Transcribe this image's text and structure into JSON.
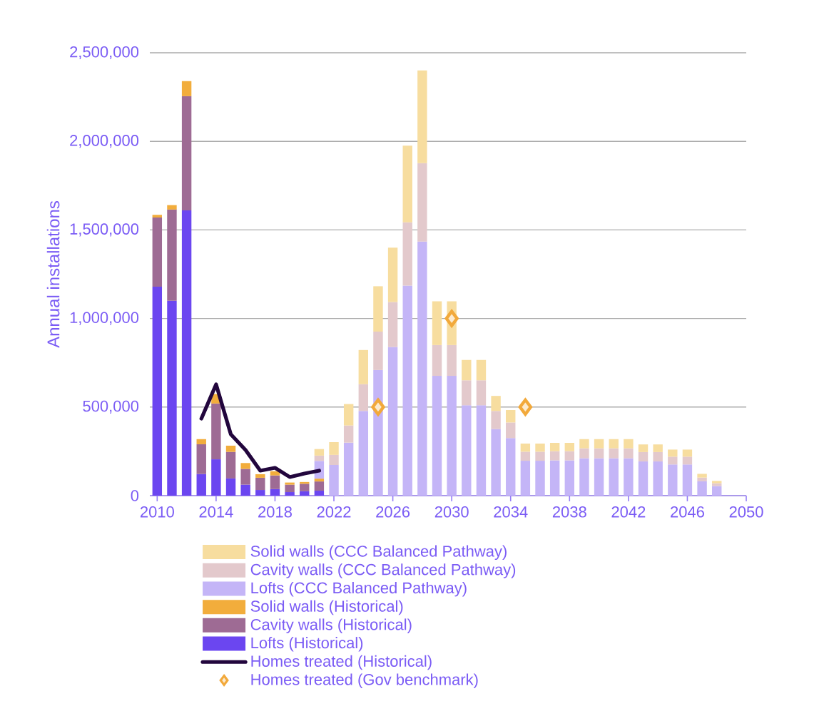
{
  "chart_data": {
    "type": "bar",
    "stacked": true,
    "ylabel": "Annual installations",
    "x": [
      2010,
      2011,
      2012,
      2013,
      2014,
      2015,
      2016,
      2017,
      2018,
      2019,
      2020,
      2021,
      2022,
      2023,
      2024,
      2025,
      2026,
      2027,
      2028,
      2029,
      2030,
      2031,
      2032,
      2033,
      2034,
      2035,
      2036,
      2037,
      2038,
      2039,
      2040,
      2041,
      2042,
      2043,
      2044,
      2045,
      2046,
      2047,
      2048
    ],
    "xlim": [
      2009.5,
      2050
    ],
    "xticks": [
      2010,
      2014,
      2018,
      2022,
      2026,
      2030,
      2034,
      2038,
      2042,
      2046,
      2050
    ],
    "ylim": [
      0,
      2500000
    ],
    "yticks": [
      0,
      {
        "value": 500000,
        "label": "500,000"
      },
      {
        "value": 1000000,
        "label": "1,000,000"
      },
      {
        "value": 1500000,
        "label": "1,500,000"
      },
      {
        "value": 2000000,
        "label": "2,000,000"
      },
      {
        "value": 2500000,
        "label": "2,500,000"
      }
    ],
    "grid": "y",
    "legend": "bottom",
    "series": [
      {
        "name": "Lofts (Historical)",
        "color": "#6b46f0",
        "values": [
          1180000,
          1100000,
          1610000,
          122000,
          205000,
          97000,
          62000,
          32000,
          37000,
          20000,
          25000,
          28000,
          null,
          null,
          null,
          null,
          null,
          null,
          null,
          null,
          null,
          null,
          null,
          null,
          null,
          null,
          null,
          null,
          null,
          null,
          null,
          null,
          null,
          null,
          null,
          null,
          null,
          null,
          null
        ]
      },
      {
        "name": "Cavity walls (Historical)",
        "color": "#9e6b94",
        "values": [
          390000,
          515000,
          645000,
          168000,
          315000,
          150000,
          89000,
          69000,
          77000,
          42000,
          42000,
          52000,
          null,
          null,
          null,
          null,
          null,
          null,
          null,
          null,
          null,
          null,
          null,
          null,
          null,
          null,
          null,
          null,
          null,
          null,
          null,
          null,
          null,
          null,
          null,
          null,
          null,
          null,
          null
        ]
      },
      {
        "name": "Solid walls (Historical)",
        "color": "#f2ad3c",
        "values": [
          15000,
          25000,
          85000,
          29000,
          54000,
          35000,
          33000,
          20000,
          24000,
          12000,
          10000,
          16000,
          null,
          null,
          null,
          null,
          null,
          null,
          null,
          null,
          null,
          null,
          null,
          null,
          null,
          null,
          null,
          null,
          null,
          null,
          null,
          null,
          null,
          null,
          null,
          null,
          null,
          null,
          null
        ]
      },
      {
        "name": "Lofts (CCC Balanced Pathway)",
        "color": "#c4b5f7",
        "values": [
          null,
          null,
          null,
          null,
          null,
          null,
          null,
          null,
          null,
          null,
          null,
          100000,
          173000,
          299000,
          478000,
          709000,
          839000,
          1186000,
          1434000,
          676000,
          676000,
          510000,
          510000,
          376000,
          325000,
          197000,
          197000,
          199000,
          199000,
          211000,
          211000,
          211000,
          211000,
          193000,
          193000,
          176000,
          176000,
          81000,
          54000
        ]
      },
      {
        "name": "Cavity walls (CCC Balanced Pathway)",
        "color": "#e3c9cc",
        "values": [
          null,
          null,
          null,
          null,
          null,
          null,
          null,
          null,
          null,
          null,
          null,
          30000,
          57000,
          97000,
          151000,
          217000,
          254000,
          357000,
          443000,
          174000,
          174000,
          141000,
          141000,
          102000,
          88000,
          51000,
          51000,
          52000,
          52000,
          56000,
          56000,
          56000,
          56000,
          53000,
          53000,
          44000,
          44000,
          21000,
          16000
        ]
      },
      {
        "name": "Solid walls (CCC Balanced Pathway)",
        "color": "#f7dd9f",
        "values": [
          null,
          null,
          null,
          null,
          null,
          null,
          null,
          null,
          null,
          null,
          null,
          37000,
          72000,
          121000,
          193000,
          256000,
          307000,
          433000,
          523000,
          247000,
          247000,
          115000,
          115000,
          85000,
          70000,
          46000,
          46000,
          47000,
          47000,
          52000,
          52000,
          52000,
          52000,
          43000,
          43000,
          40000,
          40000,
          21000,
          13000
        ]
      },
      {
        "name": "Homes treated (Historical)",
        "type": "line",
        "color": "#22063d",
        "x": [
          2013,
          2014,
          2015,
          2016,
          2017,
          2018,
          2019,
          2020,
          2021
        ],
        "values": [
          435000,
          628000,
          346000,
          258000,
          141000,
          157000,
          105000,
          125000,
          141000
        ]
      },
      {
        "name": "Homes treated (Gov benchmark)",
        "type": "scatter",
        "marker": "diamond",
        "color": "#f2a93b",
        "x": [
          2025,
          2030,
          2035
        ],
        "values": [
          500000,
          1000000,
          500000
        ]
      }
    ]
  }
}
